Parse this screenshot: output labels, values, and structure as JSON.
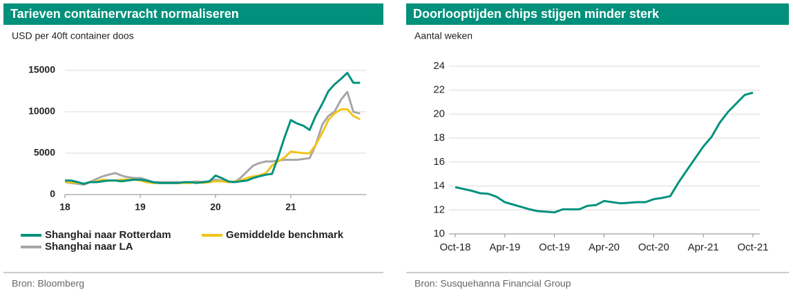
{
  "chart_data": [
    {
      "type": "line",
      "title": "Tarieven containervracht normaliseren",
      "subtitle": "USD per 40ft container doos",
      "source": "Bron: Bloomberg",
      "x": [
        18,
        18.08,
        18.17,
        18.25,
        18.33,
        18.42,
        18.5,
        18.58,
        18.67,
        18.75,
        18.83,
        18.92,
        19,
        19.08,
        19.17,
        19.25,
        19.33,
        19.42,
        19.5,
        19.58,
        19.67,
        19.75,
        19.83,
        19.92,
        20,
        20.08,
        20.17,
        20.25,
        20.33,
        20.42,
        20.5,
        20.58,
        20.67,
        20.75,
        20.83,
        20.92,
        21,
        21.08,
        21.17,
        21.25,
        21.33,
        21.42,
        21.5,
        21.58,
        21.67,
        21.75,
        21.83,
        21.92
      ],
      "series": [
        {
          "name": "Shanghai naar Rotterdam",
          "color": "#00917e",
          "values": [
            1700,
            1700,
            1500,
            1300,
            1500,
            1500,
            1600,
            1700,
            1700,
            1600,
            1700,
            1800,
            1800,
            1700,
            1500,
            1400,
            1400,
            1400,
            1400,
            1500,
            1500,
            1400,
            1500,
            1600,
            2300,
            2000,
            1600,
            1500,
            1600,
            1700,
            2000,
            2200,
            2400,
            2500,
            4500,
            7000,
            9000,
            8600,
            8300,
            7800,
            9500,
            11000,
            12500,
            13300,
            14000,
            14700,
            13500,
            13500
          ]
        },
        {
          "name": "Gemiddelde benchmark",
          "color": "#f0c419",
          "values": [
            1500,
            1500,
            1400,
            1300,
            1500,
            1600,
            1800,
            1700,
            1700,
            1800,
            1800,
            1800,
            1700,
            1500,
            1400,
            1400,
            1400,
            1400,
            1400,
            1400,
            1400,
            1500,
            1400,
            1500,
            1600,
            1600,
            1500,
            1600,
            1700,
            2000,
            2200,
            2300,
            2600,
            3500,
            4000,
            4500,
            5200,
            5100,
            5000,
            5000,
            6000,
            7500,
            9000,
            9800,
            10300,
            10300,
            9500,
            9100
          ]
        },
        {
          "name": "Shanghai naar LA",
          "color": "#a6a6a6",
          "values": [
            1500,
            1400,
            1300,
            1200,
            1500,
            1900,
            2200,
            2400,
            2600,
            2300,
            2100,
            2000,
            2000,
            1800,
            1500,
            1500,
            1500,
            1500,
            1500,
            1400,
            1500,
            1600,
            1500,
            1600,
            1800,
            1700,
            1500,
            1500,
            2000,
            2800,
            3500,
            3800,
            4000,
            4000,
            4100,
            4200,
            4200,
            4200,
            4300,
            4400,
            6000,
            8500,
            9500,
            10000,
            11500,
            12400,
            10000,
            9800
          ]
        }
      ],
      "xlim": [
        18,
        22
      ],
      "xticks": [
        18,
        19,
        20,
        21
      ],
      "ylim": [
        0,
        15000
      ],
      "yticks": [
        0,
        5000,
        10000,
        15000
      ],
      "grid": true,
      "legend": "bottom"
    },
    {
      "type": "line",
      "title": "Doorlooptijden chips stijgen minder sterk",
      "subtitle": "Aantal weken",
      "source": "Bron: Susquehanna Financial Group",
      "categories": [
        "Oct-18",
        null,
        null,
        null,
        null,
        null,
        "Apr-19",
        null,
        null,
        null,
        null,
        null,
        "Oct-19",
        null,
        null,
        null,
        null,
        null,
        "Apr-20",
        null,
        null,
        null,
        null,
        null,
        "Oct-20",
        null,
        null,
        null,
        null,
        null,
        "Apr-21",
        null,
        null,
        null,
        null,
        null,
        "Oct-21"
      ],
      "values": [
        13.9,
        13.75,
        13.6,
        13.4,
        13.35,
        13.1,
        12.65,
        12.45,
        12.25,
        12.05,
        11.9,
        11.85,
        11.8,
        12.05,
        12.05,
        12.05,
        12.35,
        12.4,
        12.75,
        12.65,
        12.55,
        12.6,
        12.65,
        12.65,
        12.9,
        13.0,
        13.15,
        14.3,
        15.3,
        16.3,
        17.3,
        18.1,
        19.3,
        20.2,
        20.9,
        21.6,
        21.8
      ],
      "color": "#00917e",
      "ylim": [
        10,
        24
      ],
      "yticks": [
        10,
        12,
        14,
        16,
        18,
        20,
        22,
        24
      ],
      "grid": true
    }
  ]
}
